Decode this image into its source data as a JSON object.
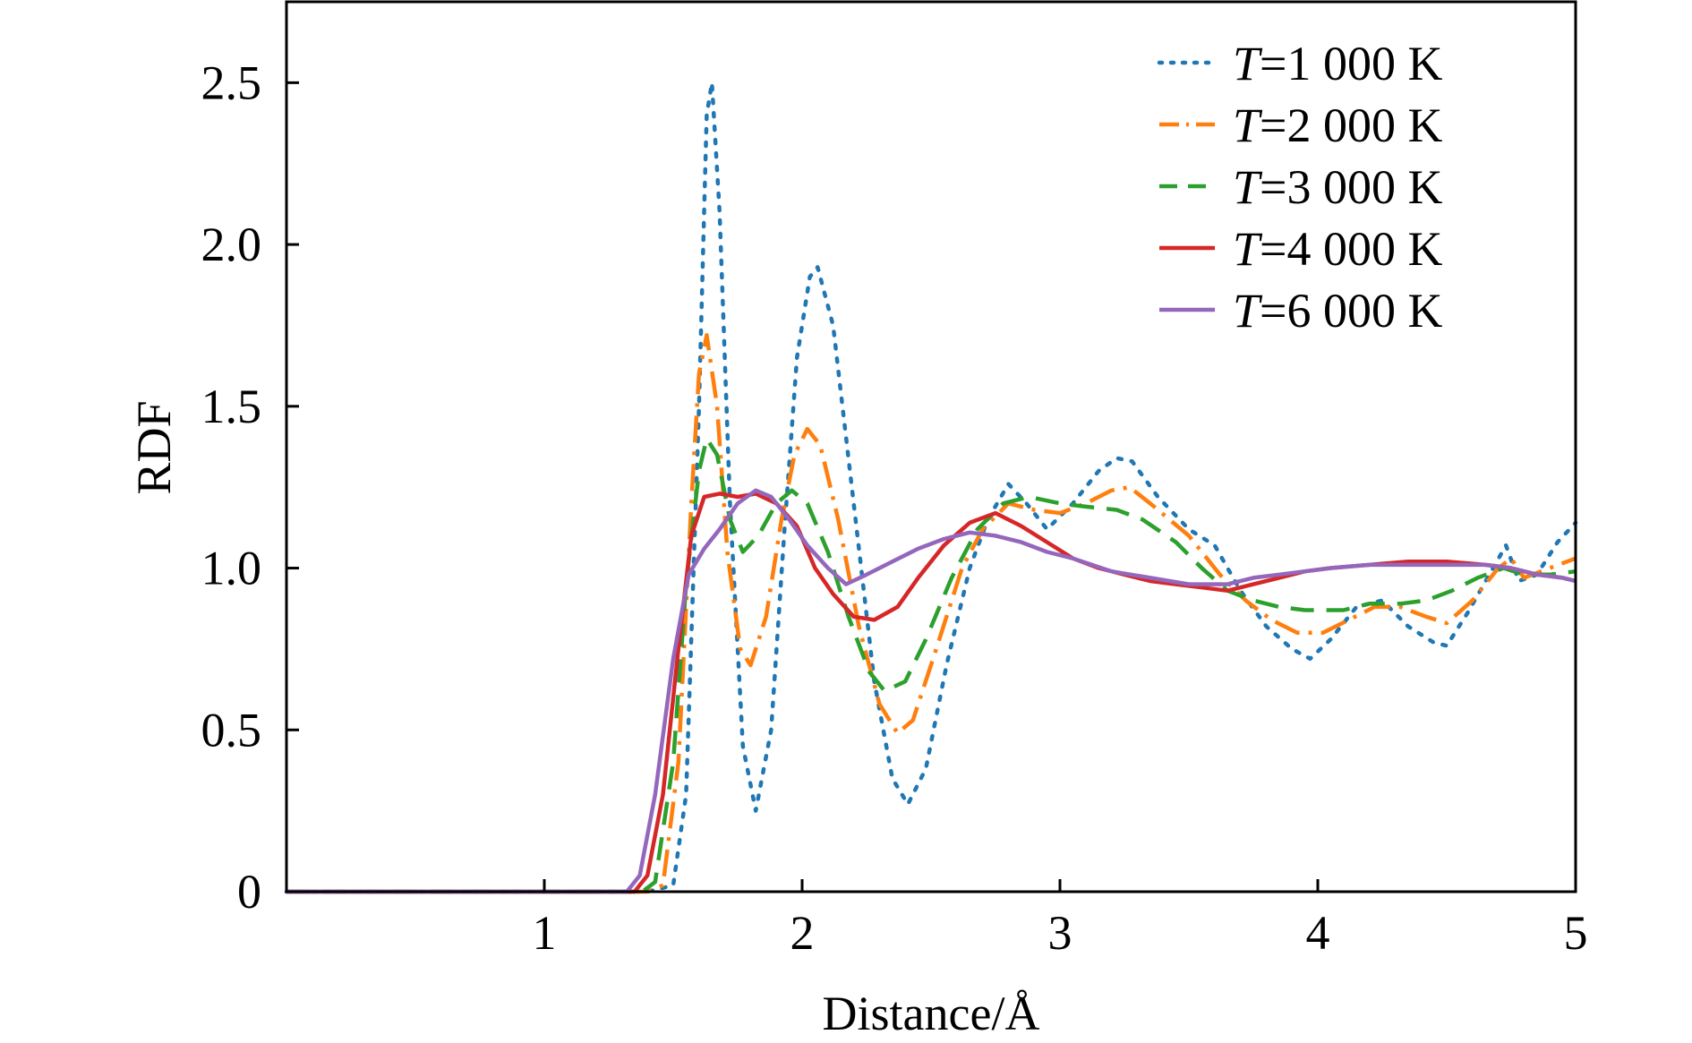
{
  "chart_data": {
    "type": "line",
    "xlabel": "Distance/Å",
    "ylabel": "RDF",
    "xlim": [
      0,
      5
    ],
    "ylim": [
      0,
      2.75
    ],
    "xticks": [
      1,
      2,
      3,
      4,
      5
    ],
    "xtick_labels": [
      "1",
      "2",
      "3",
      "4",
      "5"
    ],
    "yticks": [
      0,
      0.5,
      1.0,
      1.5,
      2.0,
      2.5
    ],
    "ytick_labels": [
      "0",
      "0.5",
      "1.0",
      "1.5",
      "2.0",
      "2.5"
    ],
    "grid": false,
    "legend_position": "top-right",
    "series": [
      {
        "name_italic": "T",
        "name_rest": "=1 000 K",
        "color": "#1f77b4",
        "dash": "dotted",
        "points": [
          [
            0,
            0
          ],
          [
            1.2,
            0
          ],
          [
            1.4,
            0
          ],
          [
            1.5,
            0.02
          ],
          [
            1.55,
            0.3
          ],
          [
            1.6,
            1.5
          ],
          [
            1.63,
            2.4
          ],
          [
            1.65,
            2.5
          ],
          [
            1.68,
            2.1
          ],
          [
            1.72,
            1.2
          ],
          [
            1.77,
            0.45
          ],
          [
            1.82,
            0.25
          ],
          [
            1.88,
            0.5
          ],
          [
            1.93,
            1.1
          ],
          [
            1.98,
            1.65
          ],
          [
            2.03,
            1.9
          ],
          [
            2.06,
            1.93
          ],
          [
            2.12,
            1.75
          ],
          [
            2.2,
            1.2
          ],
          [
            2.28,
            0.65
          ],
          [
            2.35,
            0.35
          ],
          [
            2.41,
            0.27
          ],
          [
            2.48,
            0.38
          ],
          [
            2.56,
            0.7
          ],
          [
            2.65,
            1.0
          ],
          [
            2.72,
            1.15
          ],
          [
            2.8,
            1.26
          ],
          [
            2.87,
            1.2
          ],
          [
            2.95,
            1.12
          ],
          [
            3.05,
            1.2
          ],
          [
            3.15,
            1.3
          ],
          [
            3.22,
            1.34
          ],
          [
            3.28,
            1.33
          ],
          [
            3.38,
            1.22
          ],
          [
            3.5,
            1.12
          ],
          [
            3.6,
            1.07
          ],
          [
            3.7,
            0.93
          ],
          [
            3.8,
            0.82
          ],
          [
            3.9,
            0.75
          ],
          [
            3.97,
            0.72
          ],
          [
            4.05,
            0.78
          ],
          [
            4.15,
            0.88
          ],
          [
            4.25,
            0.9
          ],
          [
            4.35,
            0.82
          ],
          [
            4.45,
            0.77
          ],
          [
            4.5,
            0.76
          ],
          [
            4.58,
            0.86
          ],
          [
            4.68,
            1.0
          ],
          [
            4.73,
            1.07
          ],
          [
            4.78,
            0.96
          ],
          [
            4.85,
            0.98
          ],
          [
            4.93,
            1.08
          ],
          [
            5.0,
            1.14
          ]
        ]
      },
      {
        "name_italic": "T",
        "name_rest": "=2 000 K",
        "color": "#ff7f0e",
        "dash": "dashdot",
        "points": [
          [
            0,
            0
          ],
          [
            1.2,
            0
          ],
          [
            1.4,
            0
          ],
          [
            1.46,
            0.02
          ],
          [
            1.52,
            0.4
          ],
          [
            1.57,
            1.2
          ],
          [
            1.6,
            1.6
          ],
          [
            1.63,
            1.72
          ],
          [
            1.67,
            1.5
          ],
          [
            1.71,
            1.05
          ],
          [
            1.76,
            0.75
          ],
          [
            1.8,
            0.7
          ],
          [
            1.86,
            0.85
          ],
          [
            1.92,
            1.15
          ],
          [
            1.97,
            1.35
          ],
          [
            2.02,
            1.43
          ],
          [
            2.07,
            1.38
          ],
          [
            2.14,
            1.15
          ],
          [
            2.22,
            0.82
          ],
          [
            2.3,
            0.58
          ],
          [
            2.37,
            0.49
          ],
          [
            2.43,
            0.53
          ],
          [
            2.52,
            0.75
          ],
          [
            2.62,
            1.0
          ],
          [
            2.7,
            1.12
          ],
          [
            2.8,
            1.2
          ],
          [
            2.9,
            1.18
          ],
          [
            3.0,
            1.17
          ],
          [
            3.1,
            1.2
          ],
          [
            3.2,
            1.24
          ],
          [
            3.27,
            1.25
          ],
          [
            3.35,
            1.2
          ],
          [
            3.5,
            1.1
          ],
          [
            3.62,
            0.98
          ],
          [
            3.72,
            0.9
          ],
          [
            3.82,
            0.84
          ],
          [
            3.92,
            0.8
          ],
          [
            4.02,
            0.8
          ],
          [
            4.12,
            0.84
          ],
          [
            4.22,
            0.88
          ],
          [
            4.32,
            0.88
          ],
          [
            4.42,
            0.85
          ],
          [
            4.5,
            0.83
          ],
          [
            4.6,
            0.9
          ],
          [
            4.7,
            1.0
          ],
          [
            4.75,
            1.03
          ],
          [
            4.8,
            0.97
          ],
          [
            4.9,
            1.0
          ],
          [
            5.0,
            1.03
          ]
        ]
      },
      {
        "name_italic": "T",
        "name_rest": "=3 000 K",
        "color": "#2ca02c",
        "dash": "dashed",
        "points": [
          [
            0,
            0
          ],
          [
            1.2,
            0
          ],
          [
            1.38,
            0
          ],
          [
            1.43,
            0.03
          ],
          [
            1.5,
            0.4
          ],
          [
            1.55,
            0.95
          ],
          [
            1.6,
            1.3
          ],
          [
            1.63,
            1.4
          ],
          [
            1.67,
            1.35
          ],
          [
            1.72,
            1.15
          ],
          [
            1.77,
            1.05
          ],
          [
            1.83,
            1.1
          ],
          [
            1.9,
            1.2
          ],
          [
            1.96,
            1.24
          ],
          [
            2.02,
            1.2
          ],
          [
            2.1,
            1.05
          ],
          [
            2.18,
            0.85
          ],
          [
            2.26,
            0.68
          ],
          [
            2.32,
            0.62
          ],
          [
            2.4,
            0.65
          ],
          [
            2.48,
            0.78
          ],
          [
            2.58,
            0.97
          ],
          [
            2.68,
            1.12
          ],
          [
            2.78,
            1.2
          ],
          [
            2.88,
            1.22
          ],
          [
            3.0,
            1.2
          ],
          [
            3.1,
            1.19
          ],
          [
            3.22,
            1.18
          ],
          [
            3.32,
            1.15
          ],
          [
            3.45,
            1.08
          ],
          [
            3.55,
            1.0
          ],
          [
            3.65,
            0.93
          ],
          [
            3.75,
            0.9
          ],
          [
            3.85,
            0.88
          ],
          [
            3.95,
            0.87
          ],
          [
            4.1,
            0.87
          ],
          [
            4.2,
            0.89
          ],
          [
            4.32,
            0.89
          ],
          [
            4.42,
            0.9
          ],
          [
            4.52,
            0.93
          ],
          [
            4.62,
            0.97
          ],
          [
            4.72,
            1.0
          ],
          [
            4.8,
            0.98
          ],
          [
            4.9,
            0.98
          ],
          [
            5.0,
            0.99
          ]
        ]
      },
      {
        "name_italic": "T",
        "name_rest": "=4 000 K",
        "color": "#d62728",
        "dash": "solid",
        "points": [
          [
            0,
            0
          ],
          [
            1.2,
            0
          ],
          [
            1.35,
            0
          ],
          [
            1.4,
            0.05
          ],
          [
            1.46,
            0.3
          ],
          [
            1.52,
            0.75
          ],
          [
            1.57,
            1.1
          ],
          [
            1.62,
            1.22
          ],
          [
            1.68,
            1.23
          ],
          [
            1.75,
            1.22
          ],
          [
            1.82,
            1.23
          ],
          [
            1.9,
            1.2
          ],
          [
            1.98,
            1.13
          ],
          [
            2.05,
            1.0
          ],
          [
            2.12,
            0.92
          ],
          [
            2.2,
            0.85
          ],
          [
            2.28,
            0.84
          ],
          [
            2.37,
            0.88
          ],
          [
            2.45,
            0.97
          ],
          [
            2.55,
            1.07
          ],
          [
            2.65,
            1.14
          ],
          [
            2.75,
            1.17
          ],
          [
            2.85,
            1.13
          ],
          [
            2.95,
            1.08
          ],
          [
            3.05,
            1.03
          ],
          [
            3.15,
            1.0
          ],
          [
            3.25,
            0.98
          ],
          [
            3.35,
            0.96
          ],
          [
            3.45,
            0.95
          ],
          [
            3.55,
            0.94
          ],
          [
            3.65,
            0.93
          ],
          [
            3.75,
            0.95
          ],
          [
            3.85,
            0.97
          ],
          [
            3.95,
            0.99
          ],
          [
            4.05,
            1.0
          ],
          [
            4.2,
            1.01
          ],
          [
            4.35,
            1.02
          ],
          [
            4.5,
            1.02
          ],
          [
            4.65,
            1.01
          ],
          [
            4.75,
            1.0
          ],
          [
            4.85,
            0.98
          ],
          [
            4.95,
            0.97
          ],
          [
            5.0,
            0.96
          ]
        ]
      },
      {
        "name_italic": "T",
        "name_rest": "=6 000 K",
        "color": "#9467bd",
        "dash": "solid",
        "points": [
          [
            0,
            0
          ],
          [
            1.2,
            0
          ],
          [
            1.32,
            0
          ],
          [
            1.37,
            0.05
          ],
          [
            1.43,
            0.3
          ],
          [
            1.5,
            0.72
          ],
          [
            1.56,
            0.98
          ],
          [
            1.62,
            1.06
          ],
          [
            1.68,
            1.12
          ],
          [
            1.75,
            1.2
          ],
          [
            1.82,
            1.24
          ],
          [
            1.88,
            1.22
          ],
          [
            1.95,
            1.15
          ],
          [
            2.02,
            1.07
          ],
          [
            2.1,
            1.0
          ],
          [
            2.17,
            0.95
          ],
          [
            2.25,
            0.98
          ],
          [
            2.35,
            1.02
          ],
          [
            2.45,
            1.06
          ],
          [
            2.55,
            1.09
          ],
          [
            2.65,
            1.11
          ],
          [
            2.75,
            1.1
          ],
          [
            2.85,
            1.08
          ],
          [
            2.95,
            1.05
          ],
          [
            3.05,
            1.03
          ],
          [
            3.2,
            0.99
          ],
          [
            3.35,
            0.97
          ],
          [
            3.5,
            0.95
          ],
          [
            3.65,
            0.95
          ],
          [
            3.75,
            0.97
          ],
          [
            3.85,
            0.98
          ],
          [
            3.95,
            0.99
          ],
          [
            4.05,
            1.0
          ],
          [
            4.2,
            1.01
          ],
          [
            4.35,
            1.01
          ],
          [
            4.5,
            1.01
          ],
          [
            4.65,
            1.01
          ],
          [
            4.75,
            1.0
          ],
          [
            4.85,
            0.98
          ],
          [
            4.95,
            0.97
          ],
          [
            5.0,
            0.96
          ]
        ]
      }
    ]
  }
}
